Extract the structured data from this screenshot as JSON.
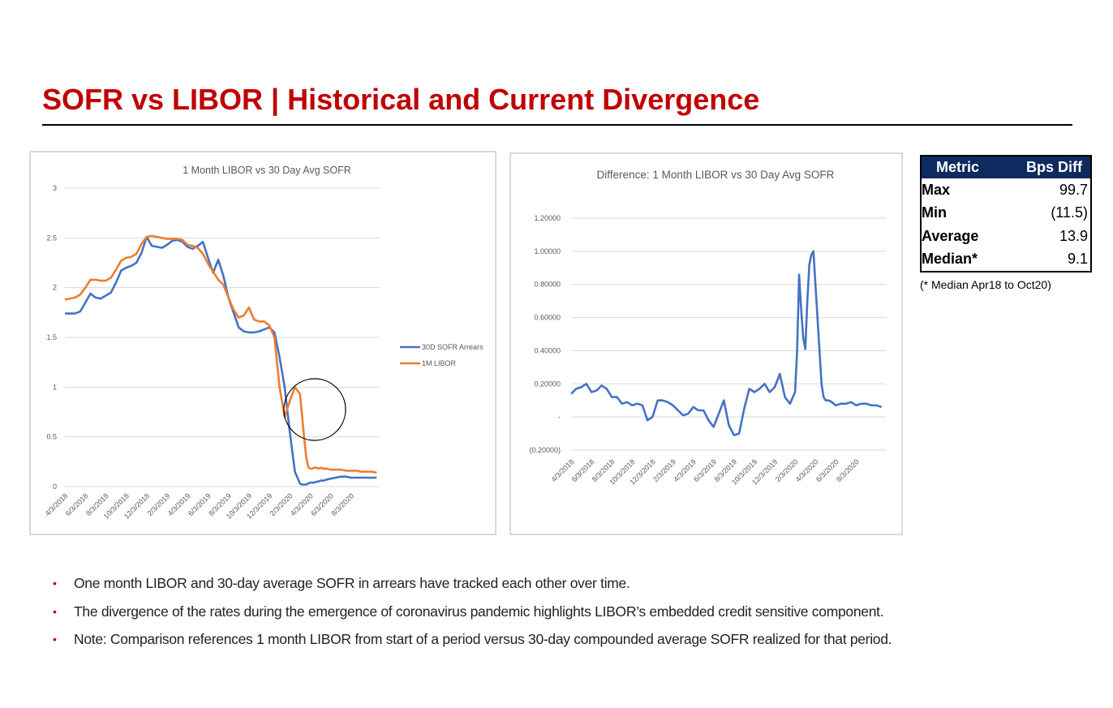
{
  "header": {
    "title": "SOFR vs LIBOR | Historical and Current Divergence"
  },
  "colors": {
    "title_red": "#c00000",
    "sofr_blue": "#4472c4",
    "libor_orange": "#ed7d31",
    "table_header_navy": "#0e2a5e"
  },
  "metrics_table": {
    "headers": [
      "Metric",
      "Bps Diff"
    ],
    "rows": [
      {
        "metric": "Max",
        "value": "99.7"
      },
      {
        "metric": "Min",
        "value": "(11.5)"
      },
      {
        "metric": "Average",
        "value": "13.9"
      },
      {
        "metric": "Median*",
        "value": "9.1"
      }
    ],
    "footnote": "(* Median Apr18 to Oct20)"
  },
  "bullets": [
    "One month LIBOR and 30-day average SOFR in arrears have tracked each other over time.",
    "The divergence of the rates during the emergence of coronavirus pandemic highlights LIBOR’s embedded credit sensitive component.",
    "Note: Comparison references 1 month LIBOR from start of a period versus 30-day compounded average SOFR realized for that period."
  ],
  "chart_data": [
    {
      "type": "line",
      "title": "1 Month LIBOR vs 30 Day Avg SOFR",
      "xlabel": "",
      "ylabel": "",
      "ylim": [
        0,
        3
      ],
      "y_ticks": [
        "0",
        "0.5",
        "1",
        "1.5",
        "2",
        "2.5",
        "3"
      ],
      "x_tick_labels": [
        "4/3/2018",
        "6/3/2018",
        "8/3/2018",
        "10/3/2018",
        "12/3/2018",
        "2/3/2019",
        "4/3/2019",
        "6/3/2019",
        "8/3/2019",
        "10/3/2019",
        "12/3/2019",
        "2/3/2020",
        "4/3/2020",
        "6/3/2020",
        "8/3/2020"
      ],
      "grid": true,
      "legend_position": "right",
      "annotation": "circle highlighting March-April 2020 divergence",
      "x_months": [
        0,
        1,
        1.5,
        2,
        2.5,
        3,
        3.5,
        4,
        4.5,
        5,
        5.5,
        6,
        6.5,
        7,
        7.5,
        8,
        8.5,
        9,
        9.5,
        10,
        10.5,
        11,
        11.5,
        12,
        12.5,
        13,
        13.5,
        14,
        14.5,
        15,
        15.5,
        16,
        16.5,
        17,
        17.5,
        18,
        18.5,
        19,
        19.5,
        20,
        20.5,
        21,
        21.5,
        22,
        22.5,
        23,
        23.2,
        23.4,
        23.6,
        23.8,
        24,
        24.2,
        24.4,
        24.6,
        24.8,
        25,
        25.3,
        25.6,
        26,
        26.5,
        27,
        27.5,
        28,
        28.5,
        29,
        29.5,
        30,
        30.5
      ],
      "series": [
        {
          "name": "30D SOFR Arrears",
          "values": [
            1.74,
            1.74,
            1.76,
            1.85,
            1.94,
            1.9,
            1.89,
            1.92,
            1.95,
            2.05,
            2.17,
            2.2,
            2.22,
            2.25,
            2.35,
            2.51,
            2.42,
            2.41,
            2.4,
            2.43,
            2.47,
            2.48,
            2.46,
            2.41,
            2.39,
            2.42,
            2.46,
            2.3,
            2.15,
            2.28,
            2.12,
            1.9,
            1.75,
            1.6,
            1.56,
            1.55,
            1.55,
            1.56,
            1.58,
            1.6,
            1.55,
            1.3,
            1.0,
            0.55,
            0.15,
            0.03,
            0.02,
            0.02,
            0.02,
            0.03,
            0.04,
            0.04,
            0.04,
            0.05,
            0.05,
            0.06,
            0.06,
            0.07,
            0.08,
            0.09,
            0.1,
            0.1,
            0.09,
            0.09,
            0.09,
            0.09,
            0.09,
            0.09
          ]
        },
        {
          "name": "1M LIBOR",
          "values": [
            1.88,
            1.9,
            1.93,
            2.0,
            2.08,
            2.08,
            2.07,
            2.07,
            2.1,
            2.18,
            2.27,
            2.3,
            2.31,
            2.34,
            2.44,
            2.51,
            2.52,
            2.51,
            2.5,
            2.49,
            2.49,
            2.49,
            2.48,
            2.43,
            2.42,
            2.4,
            2.34,
            2.24,
            2.16,
            2.08,
            2.03,
            1.9,
            1.78,
            1.7,
            1.72,
            1.8,
            1.68,
            1.66,
            1.66,
            1.62,
            1.5,
            1.0,
            0.7,
            0.86,
            1.0,
            0.93,
            0.72,
            0.5,
            0.3,
            0.2,
            0.18,
            0.18,
            0.19,
            0.19,
            0.18,
            0.19,
            0.18,
            0.18,
            0.17,
            0.17,
            0.17,
            0.16,
            0.16,
            0.16,
            0.15,
            0.15,
            0.15,
            0.14
          ]
        }
      ]
    },
    {
      "type": "line",
      "title": "Difference: 1 Month LIBOR vs 30 Day Avg SOFR",
      "xlabel": "",
      "ylabel": "",
      "ylim": [
        -0.2,
        1.2
      ],
      "y_ticks": [
        "(0.20000)",
        "-",
        "0.20000",
        "0.40000",
        "0.60000",
        "0.80000",
        "1.00000",
        "1.20000"
      ],
      "x_tick_labels": [
        "4/3/2018",
        "6/3/2018",
        "8/3/2018",
        "10/3/2018",
        "12/3/2018",
        "2/3/2019",
        "4/3/2019",
        "6/3/2019",
        "8/3/2019",
        "10/3/2019",
        "12/3/2019",
        "2/3/2020",
        "4/3/2020",
        "6/3/2020",
        "8/3/2020"
      ],
      "grid": true,
      "x_months": [
        0,
        0.5,
        1,
        1.5,
        2,
        2.5,
        3,
        3.5,
        4,
        4.5,
        5,
        5.5,
        6,
        6.5,
        7,
        7.5,
        8,
        8.5,
        9,
        9.5,
        10,
        10.5,
        11,
        11.5,
        12,
        12.5,
        13,
        13.5,
        14,
        14.5,
        15,
        15.5,
        16,
        16.5,
        17,
        17.5,
        18,
        18.5,
        19,
        19.5,
        20,
        20.5,
        21,
        21.5,
        22,
        22.2,
        22.4,
        22.6,
        22.8,
        23,
        23.2,
        23.4,
        23.6,
        23.8,
        24,
        24.2,
        24.4,
        24.6,
        24.8,
        25,
        25.3,
        25.6,
        26,
        26.5,
        27,
        27.5,
        28,
        28.5,
        29,
        29.5,
        30,
        30.5
      ],
      "series": [
        {
          "name": "Difference",
          "values": [
            0.14,
            0.17,
            0.18,
            0.2,
            0.15,
            0.16,
            0.19,
            0.17,
            0.12,
            0.12,
            0.08,
            0.09,
            0.07,
            0.08,
            0.07,
            -0.02,
            0.0,
            0.1,
            0.1,
            0.09,
            0.07,
            0.04,
            0.01,
            0.02,
            0.06,
            0.04,
            0.04,
            -0.02,
            -0.06,
            0.02,
            0.1,
            -0.05,
            -0.11,
            -0.1,
            0.05,
            0.17,
            0.15,
            0.17,
            0.2,
            0.15,
            0.18,
            0.26,
            0.12,
            0.08,
            0.15,
            0.4,
            0.86,
            0.65,
            0.48,
            0.41,
            0.7,
            0.92,
            0.98,
            1.0,
            0.8,
            0.6,
            0.4,
            0.2,
            0.12,
            0.1,
            0.1,
            0.09,
            0.07,
            0.08,
            0.08,
            0.09,
            0.07,
            0.08,
            0.08,
            0.07,
            0.07,
            0.06
          ]
        }
      ]
    }
  ]
}
